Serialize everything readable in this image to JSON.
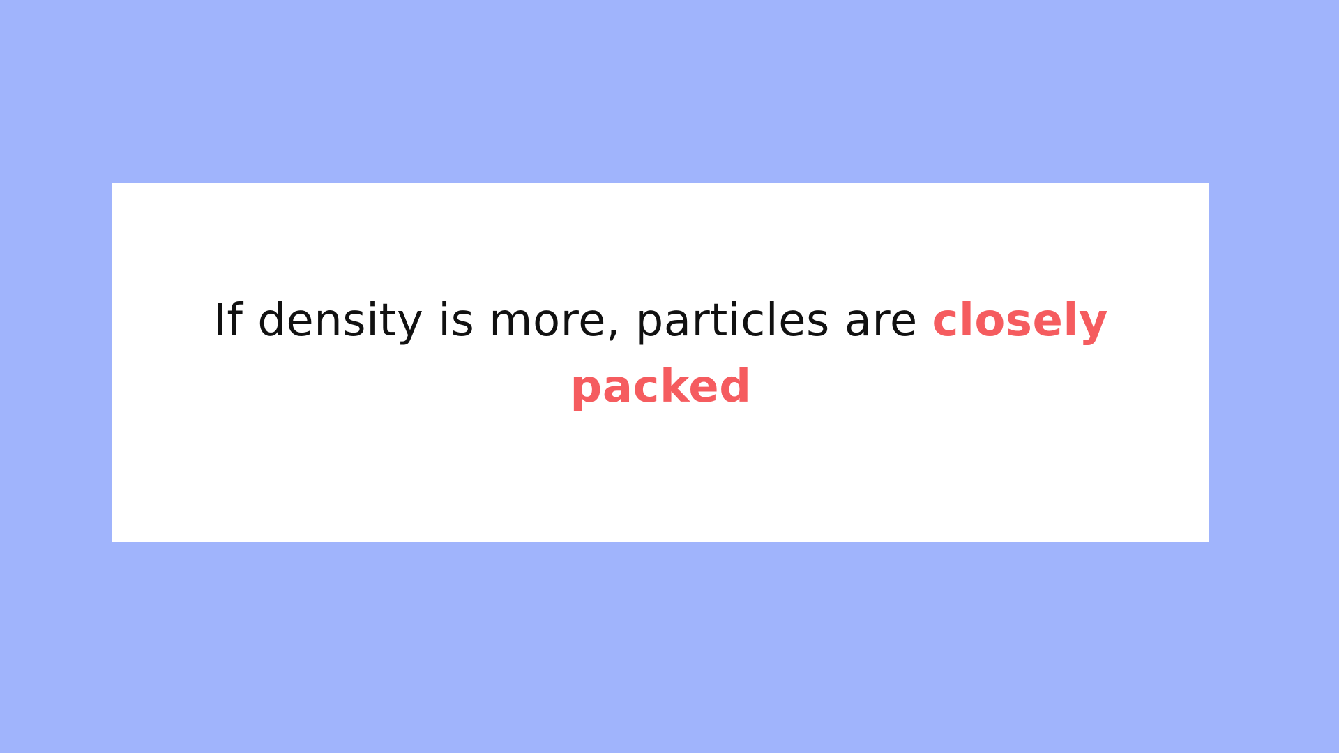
{
  "slide": {
    "background_color": "#a0b4fc",
    "card_color": "#ffffff",
    "statement": {
      "lead_text": "If density is more, particles are ",
      "highlight_text": "closely packed",
      "text_color": "#111111",
      "highlight_color": "#f55c5f"
    }
  }
}
